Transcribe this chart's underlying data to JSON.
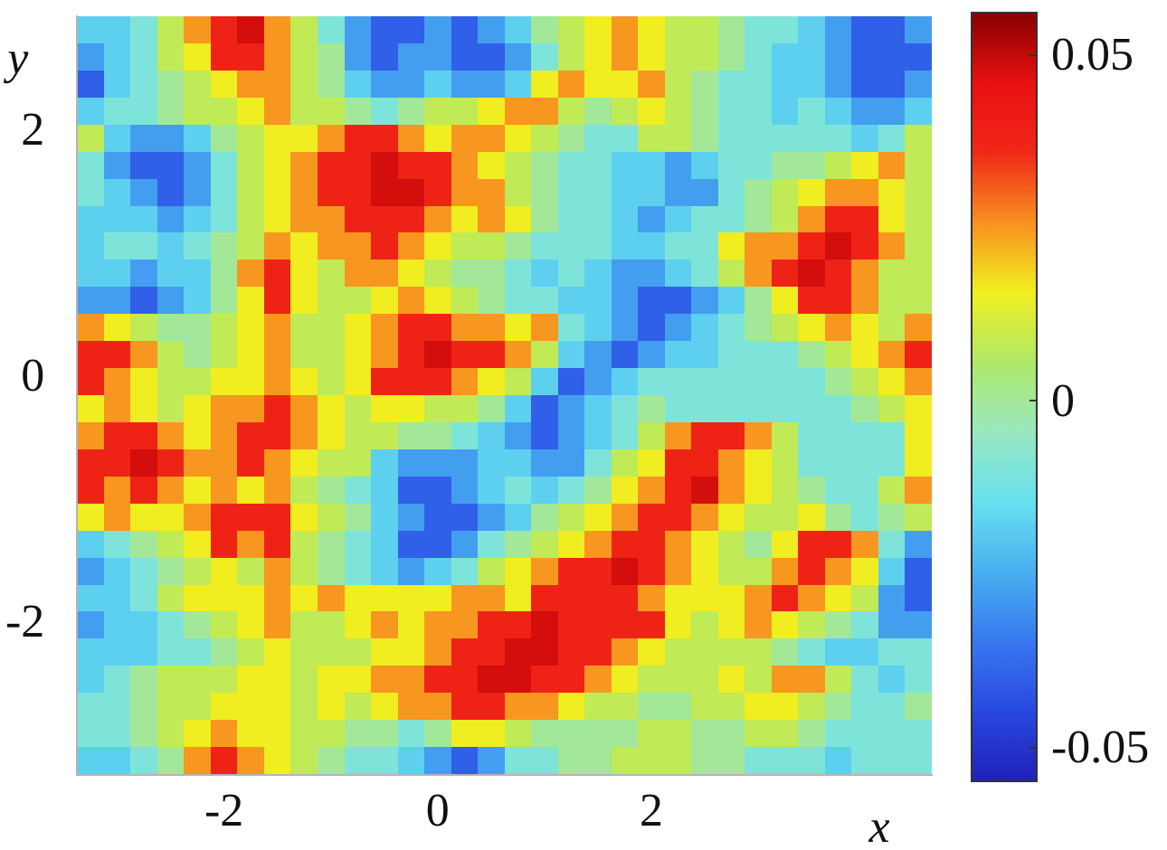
{
  "chart_data": {
    "type": "heatmap",
    "xlabel": "x",
    "ylabel": "y",
    "x": [
      -3.25,
      -3,
      -2.75,
      -2.5,
      -2.25,
      -2,
      -1.75,
      -1.5,
      -1.25,
      -1,
      -0.75,
      -0.5,
      -0.25,
      0,
      0.25,
      0.5,
      0.75,
      1,
      1.25,
      1.5,
      1.75,
      2,
      2.25,
      2.5,
      2.75,
      3,
      3.25,
      3.5,
      3.75,
      4,
      4.25,
      4.5
    ],
    "y": [
      2.81,
      2.59,
      2.37,
      2.15,
      1.93,
      1.71,
      1.49,
      1.27,
      1.05,
      0.83,
      0.61,
      0.39,
      0.17,
      -0.05,
      -0.27,
      -0.49,
      -0.71,
      -0.93,
      -1.15,
      -1.37,
      -1.59,
      -1.81,
      -2.03,
      -2.25,
      -2.47,
      -2.69,
      -2.91,
      -3.13
    ],
    "cells": [
      [
        -0.018,
        -0.018,
        -0.01,
        0.008,
        0.025,
        0.038,
        0.048,
        0.025,
        0.008,
        -0.01,
        -0.028,
        -0.04,
        -0.04,
        -0.028,
        -0.04,
        -0.028,
        -0.018,
        0,
        0.008,
        0.016,
        0.025,
        0.016,
        0.008,
        0.008,
        0,
        -0.01,
        -0.01,
        -0.018,
        -0.028,
        -0.04,
        -0.04,
        -0.028
      ],
      [
        -0.028,
        -0.018,
        -0.01,
        0.008,
        0.016,
        0.038,
        0.038,
        0.025,
        0.008,
        0,
        -0.028,
        -0.04,
        -0.028,
        -0.028,
        -0.04,
        -0.04,
        -0.028,
        -0.01,
        0.008,
        0.016,
        0.025,
        0.016,
        0.008,
        0.008,
        0,
        -0.01,
        -0.018,
        -0.018,
        -0.028,
        -0.04,
        -0.04,
        -0.04
      ],
      [
        -0.04,
        -0.018,
        -0.01,
        0,
        0.008,
        0.016,
        0.025,
        0.025,
        0.008,
        0,
        -0.018,
        -0.028,
        -0.028,
        -0.018,
        -0.028,
        -0.028,
        -0.018,
        0.016,
        0.025,
        0.016,
        0.016,
        0.025,
        0.008,
        0,
        -0.01,
        -0.01,
        -0.018,
        -0.018,
        -0.028,
        -0.04,
        -0.04,
        -0.028
      ],
      [
        -0.018,
        -0.01,
        -0.01,
        0,
        0.008,
        0.008,
        0.016,
        0.025,
        0.008,
        0.008,
        0,
        -0.01,
        0,
        0.008,
        0.008,
        0.016,
        0.025,
        0.025,
        0.008,
        0,
        0.008,
        0.016,
        0.008,
        0,
        -0.01,
        -0.01,
        -0.018,
        -0.01,
        -0.018,
        -0.028,
        -0.028,
        -0.018
      ],
      [
        0.008,
        -0.018,
        -0.028,
        -0.028,
        -0.018,
        0,
        0.008,
        0.016,
        0.016,
        0.025,
        0.038,
        0.038,
        0.025,
        0.016,
        0.025,
        0.025,
        0.016,
        0.008,
        0,
        -0.01,
        -0.01,
        0.008,
        0.008,
        0,
        -0.01,
        -0.01,
        -0.01,
        -0.01,
        -0.01,
        -0.018,
        -0.01,
        0.008
      ],
      [
        -0.01,
        -0.028,
        -0.04,
        -0.04,
        -0.028,
        -0.01,
        0.008,
        0.016,
        0.025,
        0.038,
        0.038,
        0.048,
        0.038,
        0.038,
        0.025,
        0.016,
        0.008,
        0,
        -0.01,
        -0.01,
        -0.018,
        -0.018,
        -0.028,
        -0.018,
        -0.01,
        -0.01,
        0,
        0,
        0.008,
        0.016,
        0.025,
        0.008
      ],
      [
        -0.01,
        -0.018,
        -0.028,
        -0.04,
        -0.028,
        -0.01,
        0.008,
        0.016,
        0.025,
        0.038,
        0.038,
        0.048,
        0.048,
        0.038,
        0.025,
        0.025,
        0.008,
        0,
        -0.01,
        -0.01,
        -0.018,
        -0.018,
        -0.028,
        -0.028,
        -0.01,
        0,
        0.008,
        0.016,
        0.025,
        0.025,
        0.016,
        0.008
      ],
      [
        -0.018,
        -0.018,
        -0.018,
        -0.028,
        -0.018,
        -0.01,
        0.008,
        0.016,
        0.025,
        0.025,
        0.038,
        0.038,
        0.038,
        0.025,
        0.016,
        0.025,
        0.016,
        0,
        -0.01,
        -0.01,
        -0.018,
        -0.028,
        -0.018,
        -0.01,
        -0.01,
        0,
        0.008,
        0.025,
        0.038,
        0.038,
        0.016,
        0.008
      ],
      [
        -0.018,
        -0.01,
        -0.01,
        -0.018,
        -0.01,
        0,
        0.008,
        0.025,
        0.016,
        0.025,
        0.025,
        0.038,
        0.025,
        0.016,
        0.008,
        0.008,
        0,
        -0.01,
        -0.01,
        -0.01,
        -0.018,
        -0.018,
        -0.01,
        -0.01,
        0.016,
        0.025,
        0.025,
        0.038,
        0.048,
        0.038,
        0.025,
        0.008
      ],
      [
        -0.018,
        -0.018,
        -0.028,
        -0.018,
        -0.018,
        0,
        0.025,
        0.038,
        0.016,
        0.008,
        0.025,
        0.025,
        0.016,
        0.008,
        0,
        0,
        -0.01,
        -0.018,
        -0.01,
        -0.018,
        -0.028,
        -0.028,
        -0.018,
        -0.01,
        0.008,
        0.025,
        0.038,
        0.048,
        0.038,
        0.025,
        0.008,
        0.008
      ],
      [
        -0.028,
        -0.028,
        -0.04,
        -0.028,
        -0.018,
        0,
        0.016,
        0.038,
        0.016,
        0.008,
        0.008,
        0.016,
        0.025,
        0.016,
        0.008,
        0,
        -0.01,
        -0.01,
        -0.018,
        -0.018,
        -0.028,
        -0.04,
        -0.04,
        -0.028,
        -0.018,
        0,
        0.016,
        0.038,
        0.038,
        0.025,
        0.008,
        0.008
      ],
      [
        0.025,
        0.016,
        0.008,
        0,
        0,
        0.008,
        0.016,
        0.025,
        0.008,
        0.008,
        0.016,
        0.025,
        0.038,
        0.038,
        0.025,
        0.025,
        0.016,
        0.025,
        -0.01,
        -0.018,
        -0.028,
        -0.04,
        -0.028,
        -0.018,
        -0.01,
        0,
        0.008,
        0.016,
        0.025,
        0.016,
        0.008,
        0.025
      ],
      [
        0.038,
        0.038,
        0.025,
        0.008,
        0,
        0.008,
        0.016,
        0.025,
        0.008,
        0.008,
        0.016,
        0.025,
        0.038,
        0.048,
        0.038,
        0.038,
        0.025,
        0.008,
        -0.018,
        -0.028,
        -0.04,
        -0.028,
        -0.018,
        -0.018,
        -0.01,
        -0.01,
        -0.01,
        0,
        0.008,
        0.016,
        0.025,
        0.038
      ],
      [
        0.038,
        0.025,
        0.016,
        0.008,
        0.008,
        0.016,
        0.016,
        0.025,
        0.016,
        0.008,
        0.016,
        0.038,
        0.038,
        0.038,
        0.025,
        0.016,
        0.008,
        -0.018,
        -0.04,
        -0.028,
        -0.018,
        -0.01,
        -0.01,
        -0.01,
        -0.01,
        -0.01,
        -0.01,
        -0.01,
        0,
        0.008,
        0.016,
        0.025
      ],
      [
        0.016,
        0.025,
        0.016,
        0.008,
        0.016,
        0.025,
        0.025,
        0.038,
        0.025,
        0.016,
        0.008,
        0.016,
        0.016,
        0.008,
        0.008,
        0,
        -0.018,
        -0.04,
        -0.028,
        -0.018,
        -0.01,
        0,
        -0.01,
        -0.01,
        -0.01,
        -0.01,
        -0.01,
        -0.01,
        -0.01,
        0,
        0.008,
        0.016
      ],
      [
        0.025,
        0.038,
        0.038,
        0.025,
        0.016,
        0.025,
        0.038,
        0.038,
        0.025,
        0.016,
        0.008,
        0.008,
        0,
        0,
        -0.01,
        -0.018,
        -0.028,
        -0.04,
        -0.028,
        -0.018,
        -0.01,
        0.008,
        0.025,
        0.038,
        0.038,
        0.025,
        0.008,
        -0.01,
        -0.01,
        -0.01,
        -0.01,
        0.016
      ],
      [
        0.038,
        0.038,
        0.048,
        0.038,
        0.025,
        0.025,
        0.038,
        0.025,
        0.016,
        0.008,
        0.008,
        -0.018,
        -0.028,
        -0.028,
        -0.028,
        -0.018,
        -0.018,
        -0.028,
        -0.028,
        -0.01,
        0.008,
        0.016,
        0.038,
        0.038,
        0.025,
        0.016,
        0.008,
        -0.01,
        -0.01,
        -0.01,
        -0.01,
        0.016
      ],
      [
        0.038,
        0.025,
        0.038,
        0.025,
        0.016,
        0.025,
        0.016,
        0.025,
        0.008,
        0,
        -0.01,
        -0.018,
        -0.04,
        -0.04,
        -0.028,
        -0.018,
        -0.01,
        -0.018,
        -0.01,
        0,
        0.016,
        0.025,
        0.038,
        0.048,
        0.025,
        0.016,
        0.008,
        0,
        -0.01,
        -0.01,
        0.008,
        0.025
      ],
      [
        0.016,
        0.025,
        0.016,
        0.016,
        0.025,
        0.038,
        0.038,
        0.038,
        0.016,
        0.008,
        0,
        -0.018,
        -0.028,
        -0.04,
        -0.04,
        -0.028,
        -0.018,
        0,
        0.008,
        0.016,
        0.025,
        0.038,
        0.038,
        0.025,
        0.016,
        0.008,
        0.008,
        0.016,
        0,
        -0.01,
        0,
        0.008
      ],
      [
        -0.018,
        -0.01,
        0,
        0.008,
        0.016,
        0.038,
        0.025,
        0.038,
        0.008,
        0,
        -0.01,
        -0.018,
        -0.04,
        -0.04,
        -0.028,
        -0.01,
        0,
        0.008,
        0.016,
        0.025,
        0.038,
        0.038,
        0.025,
        0.016,
        0.008,
        0,
        0.016,
        0.038,
        0.038,
        0.025,
        -0.01,
        -0.028
      ],
      [
        -0.028,
        -0.018,
        -0.01,
        0,
        0.008,
        0.016,
        0.008,
        0.025,
        0.008,
        0,
        -0.01,
        -0.018,
        -0.028,
        -0.018,
        -0.01,
        0.008,
        0.016,
        0.025,
        0.038,
        0.038,
        0.048,
        0.038,
        0.025,
        0.016,
        0.008,
        0.008,
        0.025,
        0.038,
        0.025,
        0.016,
        -0.018,
        -0.04
      ],
      [
        -0.018,
        -0.018,
        -0.01,
        0.008,
        0.016,
        0.016,
        0.016,
        0.025,
        0.016,
        0.025,
        0.016,
        0.016,
        0.016,
        0.016,
        0.025,
        0.025,
        0.016,
        0.038,
        0.038,
        0.038,
        0.038,
        0.025,
        0.016,
        0.016,
        0.016,
        0.025,
        0.038,
        0.025,
        0.016,
        0.008,
        -0.028,
        -0.04
      ],
      [
        -0.028,
        -0.018,
        -0.018,
        -0.01,
        0,
        0.008,
        0.016,
        0.025,
        0.008,
        0.008,
        0.016,
        0.025,
        0.016,
        0.025,
        0.025,
        0.038,
        0.038,
        0.048,
        0.038,
        0.038,
        0.038,
        0.038,
        0.016,
        0.008,
        0.016,
        0.025,
        0.016,
        0.008,
        0,
        -0.01,
        -0.028,
        -0.028
      ],
      [
        -0.018,
        -0.018,
        -0.018,
        -0.01,
        -0.01,
        0,
        0.008,
        0.016,
        0.008,
        0.008,
        0.008,
        0.016,
        0.016,
        0.025,
        0.038,
        0.038,
        0.048,
        0.048,
        0.038,
        0.038,
        0.025,
        0.016,
        0.008,
        0.008,
        0.008,
        0.008,
        0,
        -0.01,
        -0.018,
        -0.018,
        -0.01,
        -0.01
      ],
      [
        -0.018,
        -0.01,
        0,
        0.008,
        0.008,
        0.008,
        0.016,
        0.016,
        0.008,
        0.016,
        0.016,
        0.025,
        0.025,
        0.038,
        0.038,
        0.048,
        0.048,
        0.038,
        0.038,
        0.025,
        0.016,
        0.008,
        0.008,
        0.008,
        0.016,
        0.008,
        0.025,
        0.025,
        0.008,
        -0.01,
        -0.018,
        -0.01
      ],
      [
        -0.01,
        -0.01,
        0,
        0.008,
        0.008,
        0.016,
        0.016,
        0.016,
        0.008,
        0.016,
        0.008,
        0.016,
        0.025,
        0.025,
        0.038,
        0.038,
        0.025,
        0.025,
        0.016,
        0.008,
        0.008,
        0,
        0,
        0.008,
        0.008,
        0.016,
        0.016,
        0.008,
        0,
        -0.01,
        -0.01,
        0
      ],
      [
        -0.01,
        -0.01,
        0,
        0.008,
        0.016,
        0.025,
        0.016,
        0.016,
        0.008,
        0.008,
        0,
        0,
        -0.01,
        0,
        0.016,
        0.016,
        0.008,
        0,
        0,
        0,
        0,
        0.008,
        0.008,
        0,
        0,
        0.008,
        0.008,
        0,
        -0.01,
        -0.01,
        -0.01,
        -0.01
      ],
      [
        -0.018,
        -0.018,
        -0.01,
        0,
        0.025,
        0.038,
        0.025,
        0.016,
        0.008,
        0,
        -0.01,
        -0.01,
        -0.018,
        -0.028,
        -0.04,
        -0.028,
        -0.01,
        -0.01,
        0,
        0,
        0.008,
        0.008,
        0.008,
        0,
        0,
        -0.01,
        -0.01,
        -0.01,
        -0.018,
        -0.01,
        -0.01,
        -0.01
      ]
    ],
    "xlim": [
      -3.375,
      4.625
    ],
    "xticks": [
      -2,
      0,
      2
    ],
    "ylim": [
      -3.24,
      2.92
    ],
    "yticks": [
      -2,
      0,
      2
    ],
    "clim": [
      -0.055,
      0.056
    ],
    "cticks": [
      -0.05,
      0,
      0.05
    ],
    "colors": [
      "#2020b8",
      "#2848e0",
      "#3878f0",
      "#48b0f0",
      "#68e0f0",
      "#98e8c0",
      "#b0e868",
      "#f0f020",
      "#f89020",
      "#f02818",
      "#e81010",
      "#880000"
    ]
  }
}
